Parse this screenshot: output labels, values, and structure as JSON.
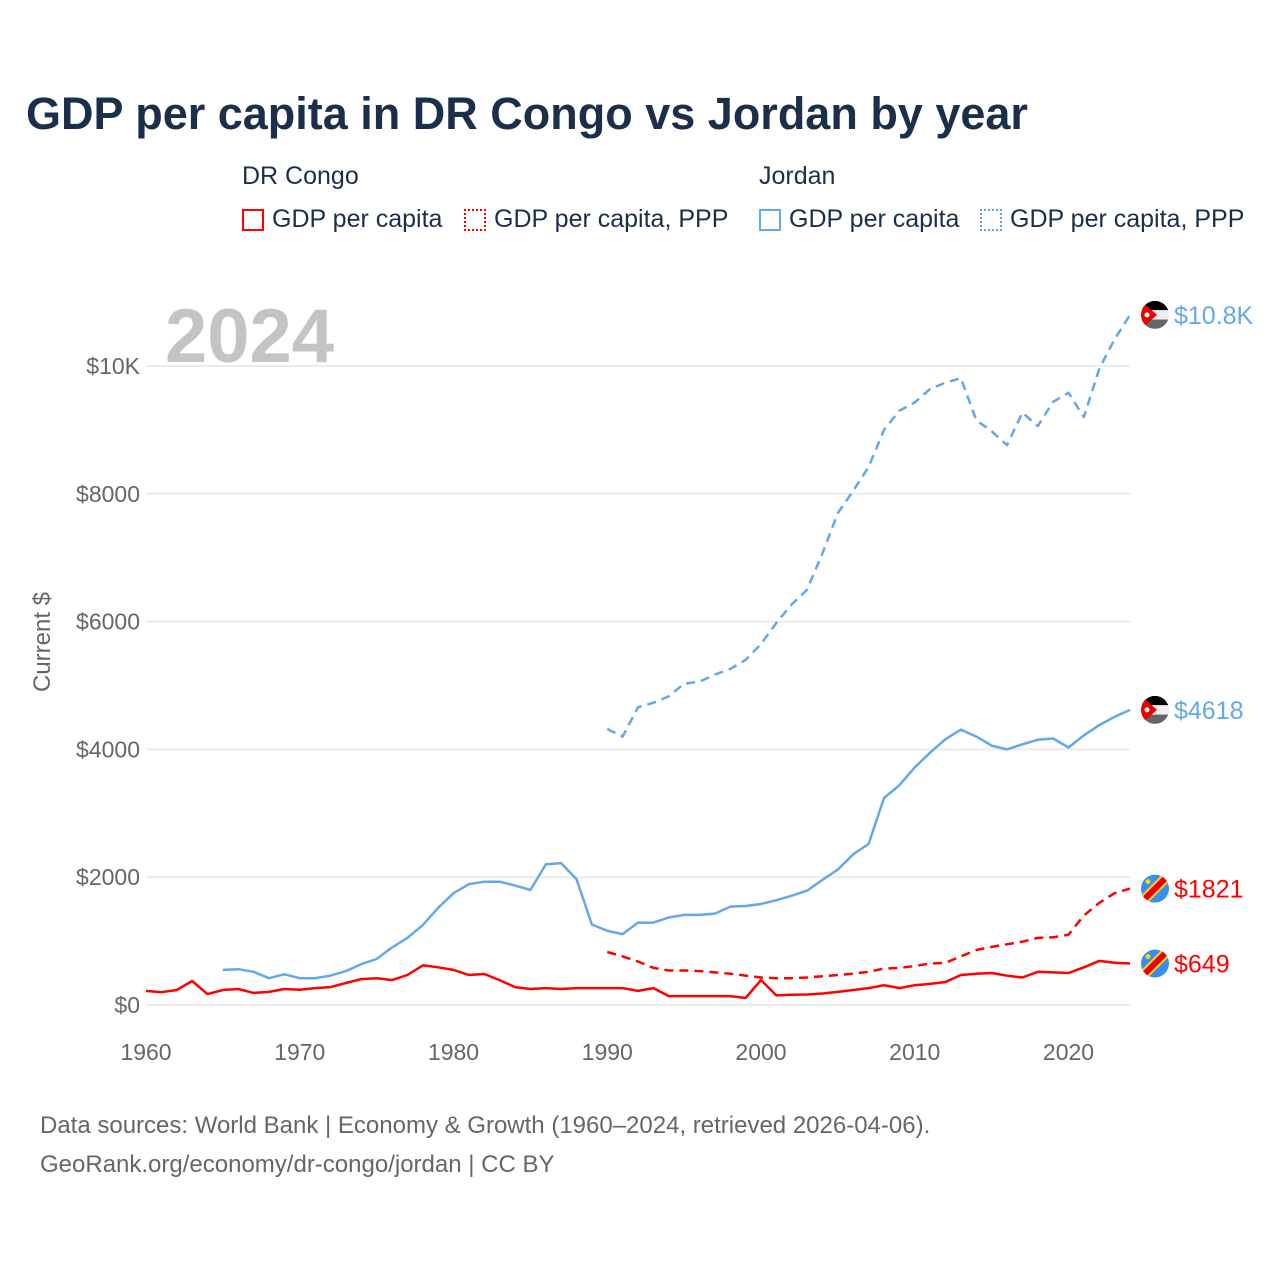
{
  "title": "GDP per capita in DR Congo vs Jordan by year",
  "legend": {
    "groups": [
      {
        "name": "DR Congo",
        "items": [
          "GDP per capita",
          "GDP per capita, PPP"
        ]
      },
      {
        "name": "Jordan",
        "items": [
          "GDP per capita",
          "GDP per capita, PPP"
        ]
      }
    ]
  },
  "year_label": "2024",
  "footer": {
    "line1": "Data sources: World Bank | Economy & Growth (1960–2024, retrieved 2026-04-06).",
    "line2": "GeoRank.org/economy/dr-congo/jordan | CC BY"
  },
  "colors": {
    "drcongo": "#ff0000",
    "jordan": "#64a8e8",
    "grid": "#ebebeb",
    "axis_text": "#666666"
  },
  "chart_data": {
    "type": "line",
    "title": "GDP per capita in DR Congo vs Jordan by year",
    "xlabel": "",
    "ylabel": "Current $",
    "xlim": [
      1960,
      2024
    ],
    "ylim": [
      0,
      10800
    ],
    "xticks": [
      1960,
      1970,
      1980,
      1990,
      2000,
      2010,
      2020
    ],
    "yticks": [
      {
        "v": 0,
        "label": "$0"
      },
      {
        "v": 2000,
        "label": "$2000"
      },
      {
        "v": 4000,
        "label": "$4000"
      },
      {
        "v": 6000,
        "label": "$6000"
      },
      {
        "v": 8000,
        "label": "$8000"
      },
      {
        "v": 10000,
        "label": "$10K"
      }
    ],
    "grid": true,
    "series": [
      {
        "name": "DR Congo GDP per capita",
        "country": "drcongo",
        "dashed": false,
        "start": 1960,
        "end_label": "$649",
        "values": [
          220,
          200,
          235,
          375,
          170,
          235,
          250,
          190,
          205,
          250,
          240,
          265,
          280,
          345,
          405,
          420,
          390,
          470,
          620,
          590,
          550,
          470,
          485,
          390,
          280,
          250,
          265,
          250,
          265,
          265,
          265,
          265,
          220,
          265,
          140,
          140,
          140,
          140,
          140,
          110,
          390,
          150,
          160,
          165,
          180,
          205,
          235,
          265,
          310,
          265,
          310,
          330,
          360,
          470,
          490,
          500,
          460,
          430,
          520,
          510,
          500,
          590,
          690,
          660,
          649
        ]
      },
      {
        "name": "DR Congo GDP per capita, PPP",
        "country": "drcongo",
        "dashed": true,
        "start": 1990,
        "end_label": "$1821",
        "values": [
          830,
          760,
          680,
          580,
          540,
          540,
          530,
          510,
          490,
          460,
          430,
          420,
          420,
          430,
          450,
          470,
          490,
          520,
          570,
          580,
          610,
          650,
          660,
          760,
          860,
          910,
          950,
          990,
          1050,
          1060,
          1100,
          1400,
          1600,
          1750,
          1821
        ]
      },
      {
        "name": "Jordan GDP per capita",
        "country": "jordan",
        "dashed": false,
        "start": 1965,
        "end_label": "$4618",
        "values": [
          550,
          560,
          520,
          420,
          480,
          420,
          420,
          460,
          530,
          640,
          720,
          900,
          1050,
          1250,
          1520,
          1750,
          1890,
          1930,
          1930,
          1870,
          1800,
          2200,
          2220,
          1970,
          1260,
          1160,
          1110,
          1290,
          1290,
          1370,
          1410,
          1410,
          1430,
          1540,
          1550,
          1580,
          1640,
          1710,
          1790,
          1960,
          2120,
          2360,
          2520,
          3240,
          3440,
          3720,
          3950,
          4160,
          4310,
          4200,
          4060,
          4000,
          4080,
          4150,
          4170,
          4030,
          4220,
          4380,
          4510,
          4618
        ]
      },
      {
        "name": "Jordan GDP per capita, PPP",
        "country": "jordan",
        "dashed": true,
        "start": 1990,
        "end_label": "$10.8K",
        "values": [
          4320,
          4200,
          4660,
          4730,
          4830,
          5030,
          5060,
          5170,
          5260,
          5400,
          5650,
          5980,
          6270,
          6500,
          7070,
          7700,
          8050,
          8420,
          9000,
          9300,
          9430,
          9640,
          9740,
          9810,
          9150,
          8980,
          8760,
          9270,
          9060,
          9440,
          9580,
          9200,
          9960,
          10420,
          10800
        ]
      }
    ]
  }
}
